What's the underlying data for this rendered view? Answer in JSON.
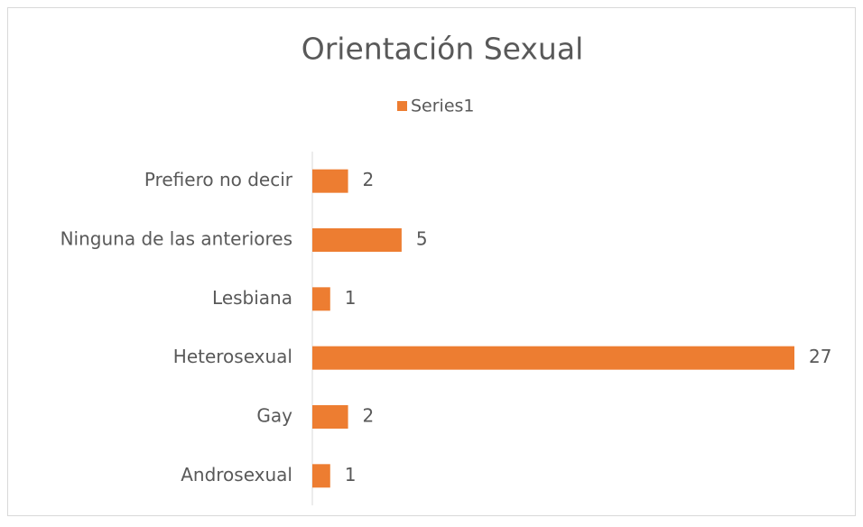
{
  "chart_data": {
    "type": "bar",
    "orientation": "horizontal",
    "title": "Orientación Sexual",
    "categories": [
      "Androsexual",
      "Gay",
      "Heterosexual",
      "Lesbiana",
      "Ninguna de las anteriores",
      "Prefiero no decir"
    ],
    "series": [
      {
        "name": "Series1",
        "color": "#ed7d31",
        "values": [
          1,
          2,
          27,
          1,
          5,
          2
        ]
      }
    ],
    "legend": "top"
  }
}
